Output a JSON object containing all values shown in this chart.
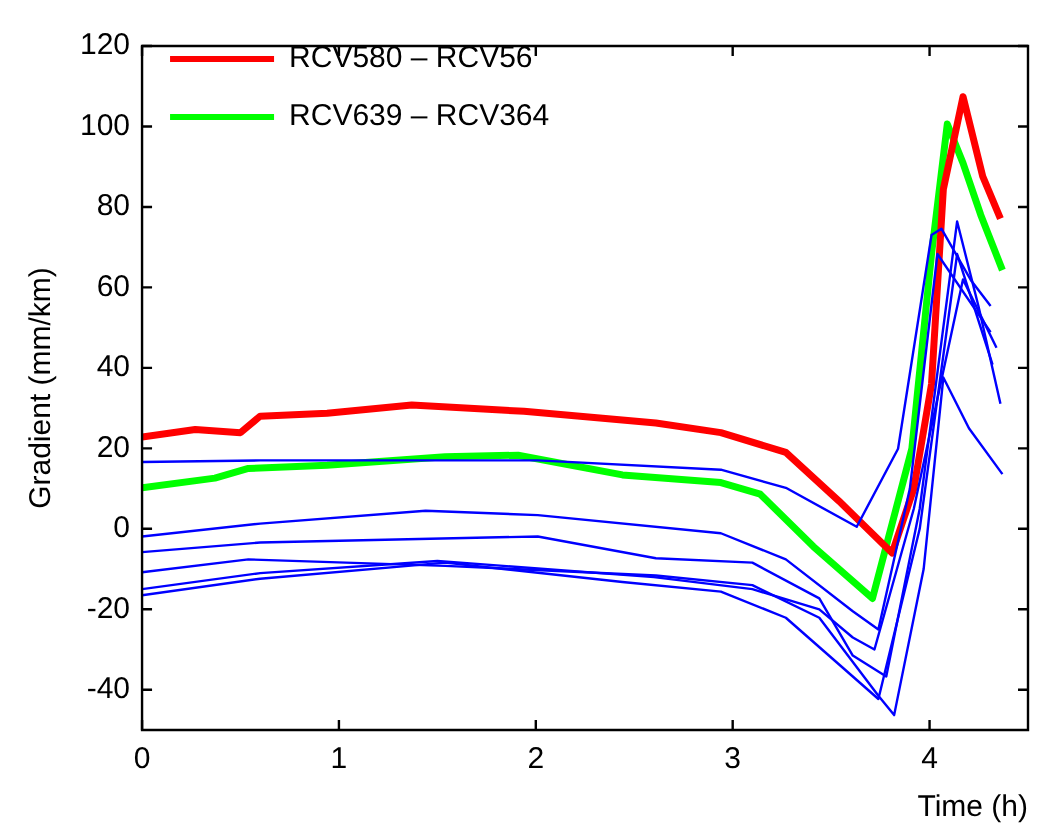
{
  "chart_data": {
    "type": "line",
    "xlabel": "Time (h)",
    "ylabel": "Gradient (mm/km)",
    "xlim": [
      0,
      4.5
    ],
    "xticks": [
      0,
      1,
      2,
      3,
      4
    ],
    "ylim": [
      -50,
      120
    ],
    "yticks": [
      -40,
      -20,
      0,
      20,
      40,
      60,
      80,
      100,
      120
    ],
    "grid": false,
    "legend": "top left",
    "marker": "none",
    "line_style": "solid",
    "series": [
      {
        "color": "#0000ff",
        "x": [
          0,
          0.6,
          1.44,
          2.01,
          2.94,
          3.27,
          3.63,
          3.84,
          4.01,
          4.06,
          4.21,
          4.31
        ],
        "values": [
          16.6,
          17,
          17,
          17,
          14.7,
          10.2,
          0.5,
          19.9,
          73,
          74.6,
          61.8,
          55.4
        ]
      },
      {
        "color": "#0000ff",
        "x": [
          0,
          0.6,
          1.44,
          2.01,
          2.94,
          3.27,
          3.61,
          3.74,
          3.9,
          4.04,
          4.31
        ],
        "values": [
          -1.9,
          1.3,
          4.5,
          3.4,
          -1.1,
          -7.6,
          -20.5,
          -25,
          10,
          68.3,
          48.9
        ]
      },
      {
        "color": "#0000ff",
        "x": [
          0,
          0.6,
          2.01,
          2.61,
          3.1,
          3.44,
          3.61,
          3.78,
          3.95,
          4.14,
          4.25,
          4.36
        ],
        "values": [
          -5.8,
          -3.4,
          -1.9,
          -7.3,
          -8.4,
          -17.3,
          -31.5,
          -36.7,
          5,
          76.4,
          55,
          31.1
        ]
      },
      {
        "color": "#0000ff",
        "x": [
          0,
          0.54,
          1.54,
          2.61,
          3.1,
          3.44,
          3.74,
          3.82,
          3.97,
          4.07,
          4.2,
          4.37
        ],
        "values": [
          -10.8,
          -7.6,
          -9.2,
          -11.6,
          -14,
          -22.1,
          -41.5,
          -46.3,
          -10,
          37.6,
          25,
          13.6
        ]
      },
      {
        "color": "#0000ff",
        "x": [
          0,
          0.6,
          1.54,
          2.44,
          2.94,
          3.27,
          3.61,
          3.74,
          3.95,
          4.14,
          4.32
        ],
        "values": [
          -16.5,
          -12.4,
          -8.4,
          -13.2,
          -15.6,
          -22.1,
          -36.7,
          -42.3,
          0,
          68.3,
          40.8
        ]
      },
      {
        "color": "#0000ff",
        "x": [
          0,
          0.6,
          1.5,
          2.6,
          3.1,
          3.44,
          3.61,
          3.72,
          3.92,
          4.17,
          4.34
        ],
        "values": [
          -15,
          -11,
          -8,
          -12,
          -15,
          -20,
          -27,
          -30,
          5,
          62,
          45
        ]
      },
      {
        "name": "RCV580 – RCV56",
        "color": "#ff0000",
        "x": [
          0,
          0.27,
          0.5,
          0.6,
          0.94,
          1.37,
          1.94,
          2.61,
          2.94,
          3.27,
          3.54,
          3.81,
          3.92,
          4.01,
          4.07,
          4.17,
          4.27,
          4.36
        ],
        "values": [
          22.8,
          24.7,
          23.9,
          28,
          28.7,
          30.8,
          29.2,
          26.3,
          23.9,
          19,
          6.9,
          -6,
          10,
          36,
          84.4,
          107.4,
          87.6,
          77.1
        ]
      },
      {
        "name": "RCV639 – RCV364",
        "color": "#00ff00",
        "x": [
          0,
          0.37,
          0.54,
          0.94,
          1.54,
          1.91,
          2.44,
          2.94,
          3.14,
          3.41,
          3.71,
          3.91,
          4.01,
          4.09,
          4.17,
          4.26,
          4.37
        ],
        "values": [
          10.2,
          12.6,
          15,
          15.8,
          17.9,
          18.3,
          13.4,
          11.5,
          8.6,
          -4.4,
          -17.3,
          19.9,
          68.3,
          100.6,
          90.9,
          78,
          64.3
        ]
      }
    ]
  }
}
